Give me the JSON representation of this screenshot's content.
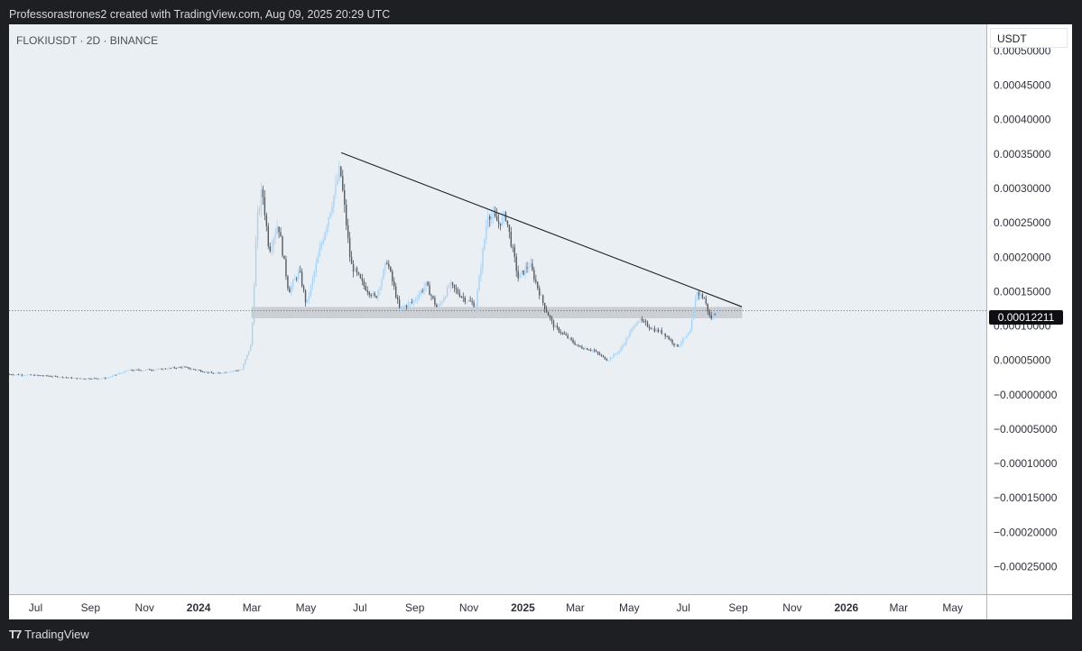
{
  "caption": "Professorastrones2 created with TradingView.com, Aug 09, 2025 20:29 UTC",
  "symbol_title": "FLOKIUSDT · 2D · BINANCE",
  "currency": "USDT",
  "footer": {
    "brand": "TradingView",
    "logo_icon": "tradingview-logo-icon"
  },
  "colors": {
    "background": "#eaeff4",
    "up_candle": "#a9d3f3",
    "down_candle": "#555962",
    "zone": "#c7c9cd",
    "trendline": "#1b1c20"
  },
  "chart_data": {
    "type": "candlestick",
    "symbol": "FLOKIUSDT",
    "interval": "2D",
    "exchange": "BINANCE",
    "current_price": 0.00012211,
    "current_price_label": "0.00012211",
    "y_range": [
      -0.00029,
      0.0005386
    ],
    "y_ticks": [
      0.0005,
      0.00045,
      0.0004,
      0.00035,
      0.0003,
      0.00025,
      0.0002,
      0.00015,
      0.0001,
      5e-05,
      0,
      -5e-05,
      -0.0001,
      -0.00015,
      -0.0002,
      -0.00025
    ],
    "y_tick_labels": [
      "0.00050000",
      "0.00045000",
      "0.00040000",
      "0.00035000",
      "0.00030000",
      "0.00025000",
      "0.00020000",
      "0.00015000",
      "0.00010000",
      "0.00005000",
      "−0.00000000",
      "−0.00005000",
      "−0.00010000",
      "−0.00015000",
      "−0.00020000",
      "−0.00025000"
    ],
    "x_range": [
      "2023-06-01",
      "2026-06-08"
    ],
    "x_ticks": [
      {
        "date": "2023-07-01",
        "label": "Jul",
        "bold": false
      },
      {
        "date": "2023-09-01",
        "label": "Sep",
        "bold": false
      },
      {
        "date": "2023-11-01",
        "label": "Nov",
        "bold": false
      },
      {
        "date": "2024-01-01",
        "label": "2024",
        "bold": true
      },
      {
        "date": "2024-03-01",
        "label": "Mar",
        "bold": false
      },
      {
        "date": "2024-05-01",
        "label": "May",
        "bold": false
      },
      {
        "date": "2024-07-01",
        "label": "Jul",
        "bold": false
      },
      {
        "date": "2024-09-01",
        "label": "Sep",
        "bold": false
      },
      {
        "date": "2024-11-01",
        "label": "Nov",
        "bold": false
      },
      {
        "date": "2025-01-01",
        "label": "2025",
        "bold": true
      },
      {
        "date": "2025-03-01",
        "label": "Mar",
        "bold": false
      },
      {
        "date": "2025-05-01",
        "label": "May",
        "bold": false
      },
      {
        "date": "2025-07-01",
        "label": "Jul",
        "bold": false
      },
      {
        "date": "2025-09-01",
        "label": "Sep",
        "bold": false
      },
      {
        "date": "2025-11-01",
        "label": "Nov",
        "bold": false
      },
      {
        "date": "2026-01-01",
        "label": "2026",
        "bold": true
      },
      {
        "date": "2026-03-01",
        "label": "Mar",
        "bold": false
      },
      {
        "date": "2026-05-01",
        "label": "May",
        "bold": false
      }
    ],
    "price_path": [
      [
        "2023-06-01",
        2.98e-05
      ],
      [
        "2023-07-15",
        2.75e-05
      ],
      [
        "2023-08-20",
        2.35e-05
      ],
      [
        "2023-09-20",
        2.4e-05
      ],
      [
        "2023-10-15",
        3.55e-05
      ],
      [
        "2023-11-20",
        3.7e-05
      ],
      [
        "2023-12-15",
        4.05e-05
      ],
      [
        "2024-01-20",
        3.05e-05
      ],
      [
        "2024-02-20",
        3.65e-05
      ],
      [
        "2024-03-02",
        7.5e-05
      ],
      [
        "2024-03-08",
        0.00025
      ],
      [
        "2024-03-14",
        0.0003
      ],
      [
        "2024-03-22",
        0.00021
      ],
      [
        "2024-04-01",
        0.00025
      ],
      [
        "2024-04-13",
        0.00015
      ],
      [
        "2024-04-25",
        0.00018
      ],
      [
        "2024-05-03",
        0.00013
      ],
      [
        "2024-05-20",
        0.00022
      ],
      [
        "2024-06-05",
        0.0003
      ],
      [
        "2024-06-10",
        0.00033
      ],
      [
        "2024-06-22",
        0.00019
      ],
      [
        "2024-07-06",
        0.00016
      ],
      [
        "2024-07-20",
        0.00014
      ],
      [
        "2024-08-02",
        0.000195
      ],
      [
        "2024-08-16",
        0.000125
      ],
      [
        "2024-08-31",
        0.000135
      ],
      [
        "2024-09-15",
        0.00016
      ],
      [
        "2024-09-28",
        0.000125
      ],
      [
        "2024-10-12",
        0.00016
      ],
      [
        "2024-10-28",
        0.00014
      ],
      [
        "2024-11-10",
        0.00013
      ],
      [
        "2024-11-24",
        0.000265
      ],
      [
        "2024-12-06",
        0.00025
      ],
      [
        "2024-12-14",
        0.00026
      ],
      [
        "2024-12-28",
        0.00017
      ],
      [
        "2025-01-10",
        0.00019
      ],
      [
        "2025-01-26",
        0.00013
      ],
      [
        "2025-02-06",
        0.0001
      ],
      [
        "2025-02-20",
        8.5e-05
      ],
      [
        "2025-03-06",
        7e-05
      ],
      [
        "2025-03-22",
        6.5e-05
      ],
      [
        "2025-04-08",
        5e-05
      ],
      [
        "2025-04-22",
        6.5e-05
      ],
      [
        "2025-05-12",
        0.00011
      ],
      [
        "2025-05-30",
        9.5e-05
      ],
      [
        "2025-06-10",
        9e-05
      ],
      [
        "2025-06-25",
        7e-05
      ],
      [
        "2025-07-10",
        9e-05
      ],
      [
        "2025-07-17",
        0.00015
      ],
      [
        "2025-07-26",
        0.00014
      ],
      [
        "2025-08-02",
        0.00011
      ],
      [
        "2025-08-09",
        0.00012211
      ]
    ],
    "annotations": [
      {
        "type": "trendline",
        "from": [
          "2024-06-10",
          0.000352
        ],
        "to": [
          "2025-09-05",
          0.000128
        ]
      },
      {
        "type": "zone",
        "from_date": "2024-03-01",
        "to_date": "2025-09-05",
        "low": 0.000112,
        "high": 0.000127
      }
    ]
  }
}
